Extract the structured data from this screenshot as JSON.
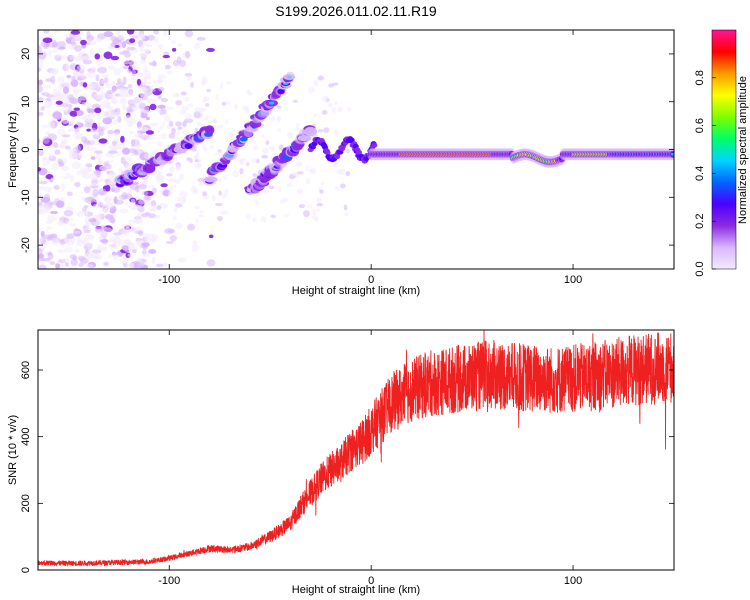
{
  "title": "S199.2026.011.02.11.R19",
  "chart_data": [
    {
      "type": "heatmap",
      "name": "spectrogram",
      "xlabel": "Height of straight line (km)",
      "ylabel": "Frequency (Hz)",
      "xlim": [
        -165,
        150
      ],
      "ylim": [
        -25,
        25
      ],
      "xticks": [
        -100,
        0,
        100
      ],
      "yticks": [
        -20,
        -10,
        0,
        10,
        20
      ],
      "colorbar": {
        "label": "Normalized spectral amplitude",
        "range": [
          0,
          1
        ],
        "ticks": [
          "0.0",
          "0.2",
          "0.4",
          "0.6",
          "0.8"
        ],
        "tick_values": [
          0.0,
          0.2,
          0.4,
          0.6,
          0.8
        ],
        "colormap": [
          "#f4eaff",
          "#d9b6ff",
          "#8a2be2",
          "#4b00ff",
          "#0066ff",
          "#00d5ff",
          "#00ff66",
          "#7fff00",
          "#ffff00",
          "#ff9900",
          "#ff0000",
          "#ff1493"
        ]
      },
      "features": {
        "carrier_line": {
          "x_range": [
            0,
            150
          ],
          "frequency_hz": -1,
          "amplitude": 0.85
        },
        "diagonal_tracks": [
          {
            "x_range": [
              -125,
              -80
            ],
            "frequency_range": [
              -7,
              4
            ]
          },
          {
            "x_range": [
              -80,
              -40
            ],
            "frequency_range": [
              -6,
              15
            ]
          },
          {
            "x_range": [
              -60,
              -30
            ],
            "frequency_range": [
              -9,
              4
            ]
          }
        ],
        "noise_region": {
          "x_range": [
            -165,
            -110
          ],
          "frequency_range": [
            -25,
            25
          ]
        }
      }
    },
    {
      "type": "line",
      "name": "snr",
      "xlabel": "Height of straight line (km)",
      "ylabel": "SNR (10 * v/v)",
      "xlim": [
        -165,
        150
      ],
      "ylim": [
        0,
        720
      ],
      "xticks": [
        -100,
        0,
        100
      ],
      "yticks": [
        0,
        200,
        400,
        600
      ],
      "color": "#ee2020",
      "series": [
        {
          "name": "SNR",
          "x": [
            -165,
            -150,
            -130,
            -110,
            -100,
            -90,
            -80,
            -70,
            -60,
            -50,
            -40,
            -35,
            -30,
            -25,
            -20,
            -15,
            -10,
            -5,
            0,
            5,
            10,
            15,
            20,
            25,
            30,
            40,
            50,
            60,
            70,
            80,
            90,
            100,
            110,
            120,
            130,
            140,
            150
          ],
          "values": [
            22,
            20,
            22,
            25,
            35,
            50,
            65,
            60,
            70,
            100,
            140,
            190,
            230,
            270,
            300,
            320,
            360,
            380,
            420,
            460,
            500,
            520,
            540,
            550,
            560,
            570,
            580,
            585,
            580,
            575,
            570,
            575,
            580,
            590,
            600,
            605,
            610
          ]
        }
      ]
    }
  ]
}
